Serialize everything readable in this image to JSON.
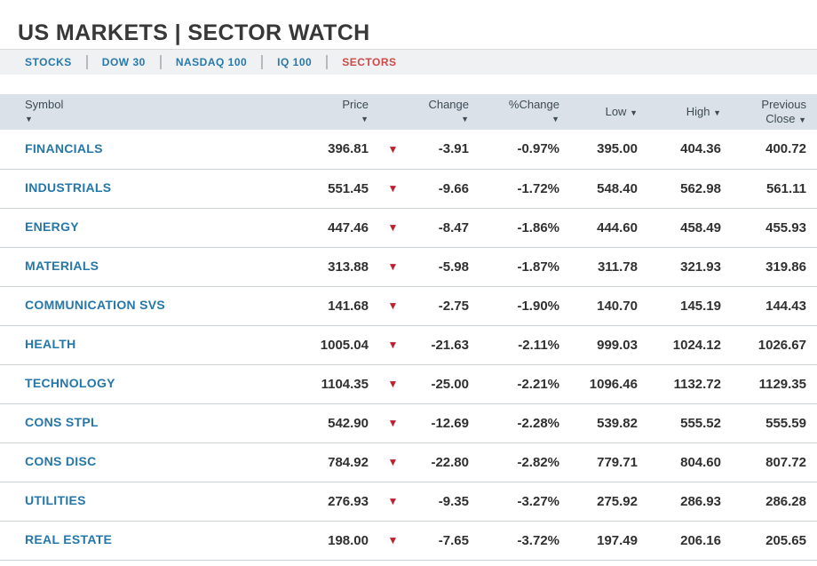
{
  "page": {
    "title": "US MARKETS | SECTOR WATCH"
  },
  "tabs": [
    {
      "label": "STOCKS"
    },
    {
      "label": "DOW 30"
    },
    {
      "label": "NASDAQ 100"
    },
    {
      "label": "IQ 100"
    },
    {
      "label": "SECTORS",
      "active": true
    }
  ],
  "icons": {
    "sort_desc": "▼",
    "down_triangle": "▼"
  },
  "colors": {
    "link_blue": "#2577a9",
    "tab_blue": "#2778ab",
    "active_tab_red": "#cb4a47",
    "down_red": "#bf1f2d",
    "table_header_bg": "#dae1e9",
    "tab_bar_bg": "#f0f1f2"
  },
  "table": {
    "header": {
      "symbol": "Symbol",
      "price": "Price",
      "change": "Change",
      "pct_change": "%Change",
      "low": "Low",
      "high": "High",
      "prev_close_line1": "Previous",
      "prev_close_line2": "Close"
    },
    "rows": [
      {
        "symbol": "FINANCIALS",
        "price": "396.81",
        "change": "-3.91",
        "pct_change": "-0.97%",
        "low": "395.00",
        "high": "404.36",
        "prev_close": "400.72"
      },
      {
        "symbol": "INDUSTRIALS",
        "price": "551.45",
        "change": "-9.66",
        "pct_change": "-1.72%",
        "low": "548.40",
        "high": "562.98",
        "prev_close": "561.11"
      },
      {
        "symbol": "ENERGY",
        "price": "447.46",
        "change": "-8.47",
        "pct_change": "-1.86%",
        "low": "444.60",
        "high": "458.49",
        "prev_close": "455.93"
      },
      {
        "symbol": "MATERIALS",
        "price": "313.88",
        "change": "-5.98",
        "pct_change": "-1.87%",
        "low": "311.78",
        "high": "321.93",
        "prev_close": "319.86"
      },
      {
        "symbol": "COMMUNICATION SVS",
        "price": "141.68",
        "change": "-2.75",
        "pct_change": "-1.90%",
        "low": "140.70",
        "high": "145.19",
        "prev_close": "144.43"
      },
      {
        "symbol": "HEALTH",
        "price": "1005.04",
        "change": "-21.63",
        "pct_change": "-2.11%",
        "low": "999.03",
        "high": "1024.12",
        "prev_close": "1026.67"
      },
      {
        "symbol": "TECHNOLOGY",
        "price": "1104.35",
        "change": "-25.00",
        "pct_change": "-2.21%",
        "low": "1096.46",
        "high": "1132.72",
        "prev_close": "1129.35"
      },
      {
        "symbol": "CONS STPL",
        "price": "542.90",
        "change": "-12.69",
        "pct_change": "-2.28%",
        "low": "539.82",
        "high": "555.52",
        "prev_close": "555.59"
      },
      {
        "symbol": "CONS DISC",
        "price": "784.92",
        "change": "-22.80",
        "pct_change": "-2.82%",
        "low": "779.71",
        "high": "804.60",
        "prev_close": "807.72"
      },
      {
        "symbol": "UTILITIES",
        "price": "276.93",
        "change": "-9.35",
        "pct_change": "-3.27%",
        "low": "275.92",
        "high": "286.93",
        "prev_close": "286.28"
      },
      {
        "symbol": "REAL ESTATE",
        "price": "198.00",
        "change": "-7.65",
        "pct_change": "-3.72%",
        "low": "197.49",
        "high": "206.16",
        "prev_close": "205.65"
      }
    ]
  }
}
